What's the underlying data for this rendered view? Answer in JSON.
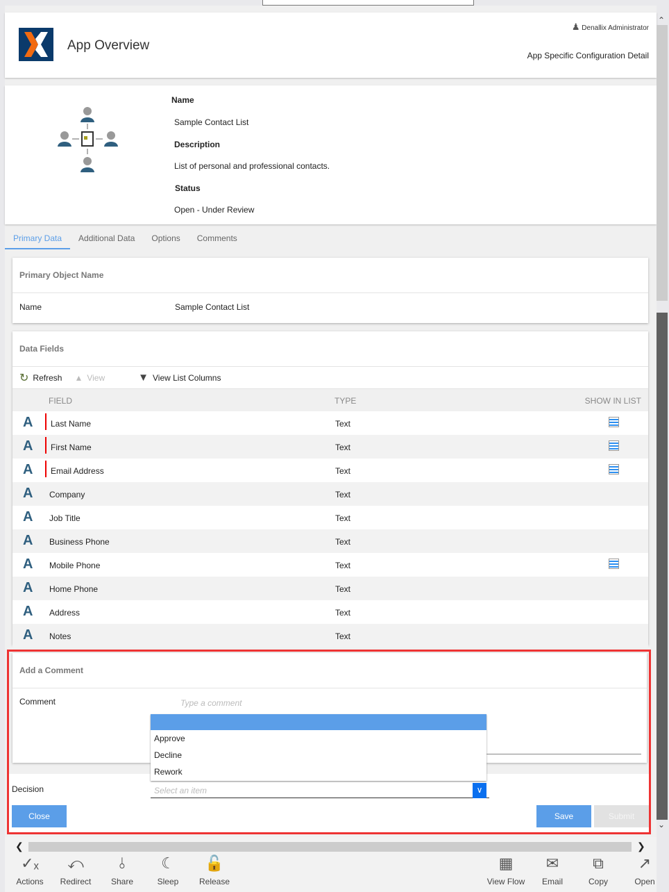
{
  "header": {
    "title": "App Overview",
    "user": "Denallix Administrator",
    "subtitle": "App Specific Configuration Detail"
  },
  "info": {
    "name_label": "Name",
    "name": "Sample Contact List",
    "description_label": "Description",
    "description": "List of personal and professional contacts.",
    "status_label": "Status",
    "status": "Open - Under Review"
  },
  "tabs": [
    "Primary Data",
    "Additional Data",
    "Options",
    "Comments"
  ],
  "primary_object": {
    "title": "Primary Object Name",
    "name_label": "Name",
    "name_value": "Sample Contact List"
  },
  "data_fields": {
    "title": "Data Fields",
    "refresh": "Refresh",
    "view": "View",
    "view_list_columns": "View List Columns",
    "columns": [
      "FIELD",
      "TYPE",
      "SHOW IN LIST"
    ],
    "rows": [
      {
        "field": "Last Name",
        "type": "Text",
        "required": true,
        "show_in_list": true
      },
      {
        "field": "First Name",
        "type": "Text",
        "required": true,
        "show_in_list": true
      },
      {
        "field": "Email Address",
        "type": "Text",
        "required": true,
        "show_in_list": true
      },
      {
        "field": "Company",
        "type": "Text",
        "required": false,
        "show_in_list": false
      },
      {
        "field": "Job Title",
        "type": "Text",
        "required": false,
        "show_in_list": false
      },
      {
        "field": "Business Phone",
        "type": "Text",
        "required": false,
        "show_in_list": false
      },
      {
        "field": "Mobile Phone",
        "type": "Text",
        "required": false,
        "show_in_list": true
      },
      {
        "field": "Home Phone",
        "type": "Text",
        "required": false,
        "show_in_list": false
      },
      {
        "field": "Address",
        "type": "Text",
        "required": false,
        "show_in_list": false
      },
      {
        "field": "Notes",
        "type": "Text",
        "required": false,
        "show_in_list": false
      }
    ]
  },
  "comment": {
    "title": "Add a Comment",
    "comment_label": "Comment",
    "comment_placeholder": "Type a comment",
    "decision_label": "Decision",
    "decision_placeholder": "Select an item",
    "options": [
      "",
      "Approve",
      "Decline",
      "Rework"
    ],
    "close": "Close",
    "save": "Save",
    "submit": "Submit"
  },
  "bottom_toolbar": {
    "left": [
      "Actions",
      "Redirect",
      "Share",
      "Sleep",
      "Release"
    ],
    "right": [
      "View Flow",
      "Email",
      "Copy",
      "Open"
    ]
  },
  "colors": {
    "accent": "#5b9ee8",
    "highlight": "#ee3333",
    "logo_bg": "#0b3a6b",
    "logo_orange": "#f26a10"
  }
}
